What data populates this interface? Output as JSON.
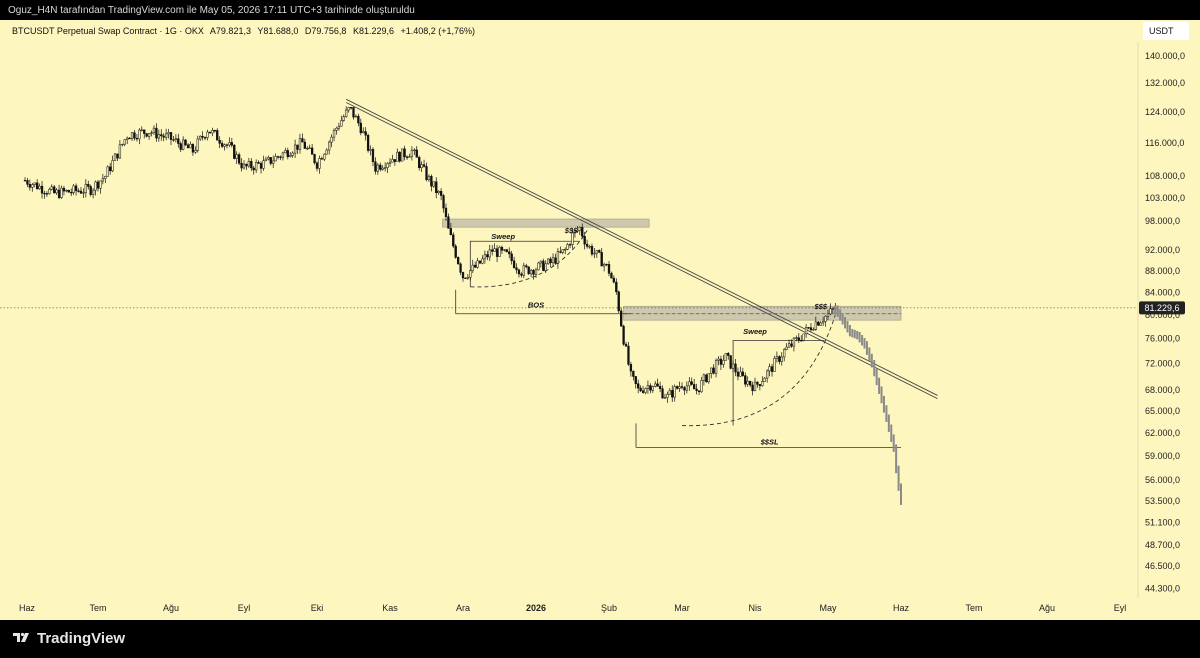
{
  "header": {
    "text": "Oguz_H4N tarafından TradingView.com ile May 05, 2026 17:11 UTC+3 tarihinde oluşturuldu"
  },
  "legend": {
    "symbol": "BTCUSDT Perpetual Swap Contract · 1G · OKX",
    "open": "A79.821,3",
    "high": "Y81.688,0",
    "low": "D79.756,8",
    "close": "K81.229,6",
    "change": "+1.408,2 (+1,76%)"
  },
  "currency": "USDT",
  "footer": {
    "brand": "TradingView"
  },
  "colors": {
    "background": "#fdf6bf",
    "candle": "#111111",
    "projection": "#8a8a8a",
    "zone": "#c9c4ad",
    "price_tag": "#222222"
  },
  "chart_data": {
    "type": "candlestick",
    "y_axis": {
      "scale": "log",
      "tick_labels": [
        "140.000,0",
        "132.000,0",
        "124.000,0",
        "116.000,0",
        "108.000,0",
        "103.000,0",
        "98.000,0",
        "92.000,0",
        "88.000,0",
        "84.000,0",
        "80.000,0",
        "76.000,0",
        "72.000,0",
        "68.000,0",
        "65.000,0",
        "62.000,0",
        "59.000,0",
        "56.000,0",
        "53.500,0",
        "51.100,0",
        "48.700,0",
        "46.500,0",
        "44.300,0"
      ],
      "tick_values": [
        140000,
        132000,
        124000,
        116000,
        108000,
        103000,
        98000,
        92000,
        88000,
        84000,
        80000,
        76000,
        72000,
        68000,
        65000,
        62000,
        59000,
        56000,
        53500,
        51100,
        48700,
        46500,
        44300
      ],
      "range": [
        43500,
        148000
      ]
    },
    "x_axis": {
      "labels": [
        "Haz",
        "Tem",
        "Ağu",
        "Eyl",
        "Eki",
        "Kas",
        "Ara",
        "2026",
        "Şub",
        "Mar",
        "Nis",
        "May",
        "Haz",
        "Tem",
        "Ağu",
        "Eyl"
      ],
      "bold_label": "2026"
    },
    "last_price": {
      "label": "81.229,6",
      "value": 81229.6
    },
    "price_path": [
      {
        "m": 0,
        "p": 107000
      },
      {
        "m": 0.4,
        "p": 104000
      },
      {
        "m": 0.9,
        "p": 105000
      },
      {
        "m": 1.1,
        "p": 108000
      },
      {
        "m": 1.4,
        "p": 118000
      },
      {
        "m": 1.7,
        "p": 119000
      },
      {
        "m": 2.0,
        "p": 117000
      },
      {
        "m": 2.3,
        "p": 114000
      },
      {
        "m": 2.5,
        "p": 119500
      },
      {
        "m": 2.8,
        "p": 115000
      },
      {
        "m": 3.0,
        "p": 110000
      },
      {
        "m": 3.3,
        "p": 111000
      },
      {
        "m": 3.5,
        "p": 113000
      },
      {
        "m": 3.8,
        "p": 116000
      },
      {
        "m": 4.0,
        "p": 111000
      },
      {
        "m": 4.3,
        "p": 121000
      },
      {
        "m": 4.45,
        "p": 125000
      },
      {
        "m": 4.6,
        "p": 120000
      },
      {
        "m": 4.8,
        "p": 110000
      },
      {
        "m": 5.0,
        "p": 112000
      },
      {
        "m": 5.3,
        "p": 114000
      },
      {
        "m": 5.5,
        "p": 108000
      },
      {
        "m": 5.7,
        "p": 103000
      },
      {
        "m": 5.8,
        "p": 96000
      },
      {
        "m": 6.0,
        "p": 87000
      },
      {
        "m": 6.2,
        "p": 89000
      },
      {
        "m": 6.4,
        "p": 92000
      },
      {
        "m": 6.6,
        "p": 91000
      },
      {
        "m": 6.8,
        "p": 88000
      },
      {
        "m": 7.0,
        "p": 88500
      },
      {
        "m": 7.2,
        "p": 89500
      },
      {
        "m": 7.4,
        "p": 92000
      },
      {
        "m": 7.5,
        "p": 95000
      },
      {
        "m": 7.6,
        "p": 96500
      },
      {
        "m": 7.7,
        "p": 93000
      },
      {
        "m": 7.9,
        "p": 90000
      },
      {
        "m": 8.0,
        "p": 88000
      },
      {
        "m": 8.1,
        "p": 84000
      },
      {
        "m": 8.2,
        "p": 76000
      },
      {
        "m": 8.3,
        "p": 70000
      },
      {
        "m": 8.4,
        "p": 68000
      },
      {
        "m": 8.6,
        "p": 69000
      },
      {
        "m": 8.8,
        "p": 67000
      },
      {
        "m": 9.0,
        "p": 69000
      },
      {
        "m": 9.2,
        "p": 68000
      },
      {
        "m": 9.4,
        "p": 71000
      },
      {
        "m": 9.6,
        "p": 73000
      },
      {
        "m": 9.8,
        "p": 70000
      },
      {
        "m": 10.0,
        "p": 68500
      },
      {
        "m": 10.2,
        "p": 71000
      },
      {
        "m": 10.4,
        "p": 74000
      },
      {
        "m": 10.6,
        "p": 76000
      },
      {
        "m": 10.8,
        "p": 78500
      },
      {
        "m": 11.0,
        "p": 80000
      },
      {
        "m": 11.1,
        "p": 81229.6
      }
    ],
    "projection_path": [
      {
        "m": 11.1,
        "p": 81000
      },
      {
        "m": 11.2,
        "p": 79000
      },
      {
        "m": 11.3,
        "p": 77000
      },
      {
        "m": 11.4,
        "p": 76500
      },
      {
        "m": 11.5,
        "p": 75000
      },
      {
        "m": 11.6,
        "p": 72000
      },
      {
        "m": 11.7,
        "p": 68000
      },
      {
        "m": 11.8,
        "p": 64000
      },
      {
        "m": 11.9,
        "p": 60000
      },
      {
        "m": 11.95,
        "p": 56000
      },
      {
        "m": 12.0,
        "p": 53500
      }
    ],
    "annotations": [
      {
        "text": "Sweep",
        "m": 6.55,
        "p": 94300
      },
      {
        "text": "$$$",
        "m": 7.48,
        "p": 95500
      },
      {
        "text": "BOS",
        "m": 7.0,
        "p": 81300
      },
      {
        "text": "Sweep",
        "m": 10.0,
        "p": 76800
      },
      {
        "text": "$$$",
        "m": 10.9,
        "p": 81000
      },
      {
        "text": "$$SL",
        "m": 10.2,
        "p": 60500
      }
    ],
    "trendline": [
      {
        "m": 4.4,
        "p": 127000
      },
      {
        "m": 12.5,
        "p": 67000
      }
    ],
    "zones": [
      {
        "m1": 5.72,
        "m2": 8.55,
        "p_low": 96700,
        "p_high": 98400
      },
      {
        "m1": 8.2,
        "m2": 12.0,
        "p_low": 79100,
        "p_high": 81500
      }
    ],
    "levels": [
      {
        "m1": 5.9,
        "m2": 8.3,
        "p": 80200,
        "label": "BOS"
      },
      {
        "m1": 8.37,
        "m2": 12.0,
        "p": 60100,
        "label": "$$SL"
      }
    ],
    "grid": false
  }
}
